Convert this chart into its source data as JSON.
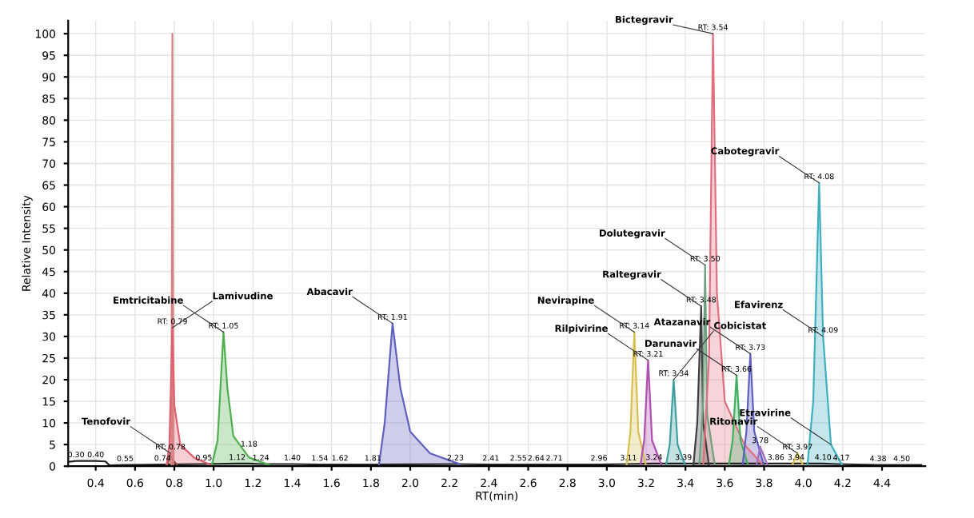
{
  "chart_data": {
    "type": "area",
    "xlabel": "RT(min)",
    "ylabel": "Relative Intensity",
    "xlim": [
      0.26,
      4.62
    ],
    "ylim": [
      0,
      103
    ],
    "xticks": [
      0.4,
      0.6,
      0.8,
      {
        "value": 1,
        "label": "1.0"
      },
      1.2,
      1.4,
      1.6,
      1.8,
      {
        "value": 2,
        "label": "2.0"
      },
      2.2,
      2.4,
      2.6,
      2.8,
      {
        "value": 3,
        "label": "3.0"
      },
      3.2,
      3.4,
      3.6,
      3.8,
      {
        "value": 4,
        "label": "4.0"
      },
      4.2,
      4.4
    ],
    "yticks": [
      0,
      5,
      10,
      15,
      20,
      25,
      30,
      35,
      40,
      45,
      50,
      55,
      60,
      65,
      70,
      75,
      80,
      85,
      90,
      95,
      100
    ],
    "grid": true,
    "legend": false,
    "series": [
      {
        "color": "#222222",
        "type": "line",
        "x": [
          0.26,
          0.3,
          0.4,
          0.45,
          0.47,
          0.55,
          0.74,
          0.95,
          1.12,
          1.18,
          1.24,
          1.4,
          1.54,
          1.62,
          1.81,
          2.23,
          2.41,
          2.55,
          2.64,
          2.71,
          2.96,
          3.11,
          3.24,
          3.39,
          3.86,
          3.94,
          4.1,
          4.17,
          4.38,
          4.5,
          4.6
        ],
        "values": [
          1,
          1.2,
          1.2,
          1.1,
          0.2,
          0.3,
          0.4,
          0.5,
          0.6,
          0.6,
          0.5,
          0.5,
          0.4,
          0.4,
          0.4,
          0.5,
          0.4,
          0.4,
          0.4,
          0.4,
          0.4,
          0.5,
          0.6,
          0.6,
          0.6,
          0.6,
          0.6,
          0.5,
          0.3,
          0.3,
          0.3
        ]
      },
      {
        "color": "#8b4a3a",
        "x": [
          0.76,
          0.775,
          0.78,
          0.79,
          0.82
        ],
        "values": [
          0,
          2,
          3,
          1.5,
          0
        ]
      },
      {
        "color": "#d98080",
        "type": "line",
        "x": [
          0.785,
          0.79,
          0.795
        ],
        "values": [
          0,
          100,
          0
        ]
      },
      {
        "color": "#e06070",
        "x": [
          0.76,
          0.775,
          0.79,
          0.8,
          0.83,
          0.9,
          1.0
        ],
        "values": [
          0,
          5,
          32,
          14,
          5,
          2,
          0
        ]
      },
      {
        "color": "#50b050",
        "x": [
          0.99,
          1.02,
          1.05,
          1.07,
          1.1,
          1.18,
          1.3
        ],
        "values": [
          0,
          6,
          31,
          18,
          7,
          2,
          0
        ]
      },
      {
        "color": "#6060c0",
        "x": [
          1.84,
          1.87,
          1.91,
          1.95,
          2.0,
          2.1,
          2.25
        ],
        "values": [
          0,
          10,
          33,
          18,
          8,
          3,
          0.5
        ]
      },
      {
        "color": "#d8c050",
        "x": [
          3.1,
          3.12,
          3.14,
          3.16,
          3.2
        ],
        "values": [
          0,
          8,
          31,
          8,
          0
        ]
      },
      {
        "color": "#b050b0",
        "x": [
          3.17,
          3.19,
          3.21,
          3.23,
          3.28
        ],
        "values": [
          0,
          6,
          24.5,
          6,
          0
        ]
      },
      {
        "color": "#40a0a0",
        "x": [
          3.3,
          3.32,
          3.34,
          3.36,
          3.4
        ],
        "values": [
          0,
          5,
          20,
          5,
          0
        ]
      },
      {
        "color": "#404040",
        "x": [
          3.44,
          3.46,
          3.48,
          3.49,
          3.52
        ],
        "values": [
          0,
          10,
          37,
          10,
          0
        ]
      },
      {
        "color": "#70a080",
        "x": [
          3.47,
          3.49,
          3.5,
          3.51,
          3.55
        ],
        "values": [
          0,
          15,
          46.5,
          12,
          0
        ]
      },
      {
        "color": "#e07080",
        "x": [
          3.49,
          3.52,
          3.54,
          3.56,
          3.6,
          3.7,
          3.8
        ],
        "values": [
          0,
          25,
          100,
          40,
          15,
          5,
          0
        ]
      },
      {
        "color": "#40b060",
        "x": [
          3.62,
          3.64,
          3.66,
          3.68,
          3.72
        ],
        "values": [
          0,
          6,
          21,
          6,
          0
        ]
      },
      {
        "color": "#6060c0",
        "x": [
          3.69,
          3.71,
          3.73,
          3.75,
          3.8
        ],
        "values": [
          0,
          8,
          26,
          8,
          0
        ]
      },
      {
        "color": "#a070c0",
        "x": [
          3.76,
          3.78,
          3.82
        ],
        "values": [
          0,
          4.5,
          0
        ]
      },
      {
        "color": "#d8c050",
        "x": [
          3.94,
          3.97,
          4.0
        ],
        "values": [
          0,
          3,
          0
        ]
      },
      {
        "color": "#40b0c0",
        "x": [
          4.02,
          4.05,
          4.08,
          4.1,
          4.14,
          4.2
        ],
        "values": [
          0,
          15,
          65.5,
          30,
          5,
          0
        ]
      }
    ],
    "annotations": [
      {
        "text": "Lamivudine",
        "x": 0.79,
        "y": 32
      },
      {
        "text": "Tenofovir",
        "x": 0.78,
        "y": 3
      },
      {
        "text": "Emtricitabine",
        "x": 1.05,
        "y": 31
      },
      {
        "text": "Abacavir",
        "x": 1.91,
        "y": 33
      },
      {
        "text": "Bictegravir",
        "x": 3.54,
        "y": 100
      },
      {
        "text": "Dolutegravir",
        "x": 3.5,
        "y": 46.5
      },
      {
        "text": "Raltegravir",
        "x": 3.48,
        "y": 37
      },
      {
        "text": "Cobicistat",
        "x": 3.34,
        "y": 20
      },
      {
        "text": "Rilpivirine",
        "x": 3.21,
        "y": 24.5
      },
      {
        "text": "Nevirapine",
        "x": 3.14,
        "y": 31
      },
      {
        "text": "Darunavir",
        "x": 3.66,
        "y": 21
      },
      {
        "text": "Atazanavir",
        "x": 3.73,
        "y": 26
      },
      {
        "text": "Ritonavir",
        "x": 3.97,
        "y": 3
      },
      {
        "text": "Efavirenz",
        "x": 4.1,
        "y": 30
      },
      {
        "text": "Etravirine",
        "x": 4.14,
        "y": 5
      },
      {
        "text": "Cabotegravir",
        "x": 4.08,
        "y": 65.5
      },
      {
        "text": "RT: 0.79",
        "x": 0.79,
        "y": 32
      },
      {
        "text": "RT: 0.78",
        "x": 0.78,
        "y": 3
      },
      {
        "text": "RT: 1.05",
        "x": 1.05,
        "y": 31
      },
      {
        "text": "RT: 1.91",
        "x": 1.91,
        "y": 33
      },
      {
        "text": "RT: 3.54",
        "x": 3.54,
        "y": 100
      },
      {
        "text": "RT: 3.50",
        "x": 3.5,
        "y": 46.5
      },
      {
        "text": "RT: 3.48",
        "x": 3.48,
        "y": 37
      },
      {
        "text": "RT: 3.14",
        "x": 3.14,
        "y": 31
      },
      {
        "text": "RT: 3.21",
        "x": 3.21,
        "y": 24.5
      },
      {
        "text": "RT: 3.34",
        "x": 3.34,
        "y": 20
      },
      {
        "text": "RT: 3.66",
        "x": 3.66,
        "y": 21
      },
      {
        "text": "RT: 3.73",
        "x": 3.73,
        "y": 26
      },
      {
        "text": "3.78",
        "x": 3.78,
        "y": 4.5
      },
      {
        "text": "RT: 3.97",
        "x": 3.97,
        "y": 3
      },
      {
        "text": "RT: 4.08",
        "x": 4.08,
        "y": 65.5
      },
      {
        "text": "RT: 4.09",
        "x": 4.1,
        "y": 30
      },
      {
        "text": "0.30",
        "x": 0.3,
        "y": 1.2
      },
      {
        "text": "0.40",
        "x": 0.4,
        "y": 1.2
      },
      {
        "text": "0.55",
        "x": 0.55,
        "y": 0.3
      },
      {
        "text": "0.74",
        "x": 0.74,
        "y": 0.4
      },
      {
        "text": "0.95",
        "x": 0.95,
        "y": 0.5
      },
      {
        "text": "1.12",
        "x": 1.12,
        "y": 0.6
      },
      {
        "text": "1.18",
        "x": 1.18,
        "y": 0.6
      },
      {
        "text": "1.24",
        "x": 1.24,
        "y": 0.5
      },
      {
        "text": "1.40",
        "x": 1.4,
        "y": 0.5
      },
      {
        "text": "1.54",
        "x": 1.54,
        "y": 0.4
      },
      {
        "text": "1.62",
        "x": 1.62,
        "y": 0.4
      },
      {
        "text": "1.81",
        "x": 1.81,
        "y": 0.4
      },
      {
        "text": "2.23",
        "x": 2.23,
        "y": 0.5
      },
      {
        "text": "2.41",
        "x": 2.41,
        "y": 0.4
      },
      {
        "text": "2.55",
        "x": 2.55,
        "y": 0.4
      },
      {
        "text": "2.64",
        "x": 2.64,
        "y": 0.4
      },
      {
        "text": "2.71",
        "x": 2.71,
        "y": 0.4
      },
      {
        "text": "2.96",
        "x": 2.96,
        "y": 0.4
      },
      {
        "text": "3.11",
        "x": 3.11,
        "y": 0.5
      },
      {
        "text": "3.24",
        "x": 3.24,
        "y": 0.6
      },
      {
        "text": "3.39",
        "x": 3.39,
        "y": 0.6
      },
      {
        "text": "3.86",
        "x": 3.86,
        "y": 0.6
      },
      {
        "text": "3.94",
        "x": 3.94,
        "y": 0.6
      },
      {
        "text": "4.10",
        "x": 4.1,
        "y": 0.6
      },
      {
        "text": "4.17",
        "x": 4.17,
        "y": 0.5
      },
      {
        "text": "4.38",
        "x": 4.38,
        "y": 0.3
      },
      {
        "text": "4.50",
        "x": 4.5,
        "y": 0.3
      }
    ]
  }
}
